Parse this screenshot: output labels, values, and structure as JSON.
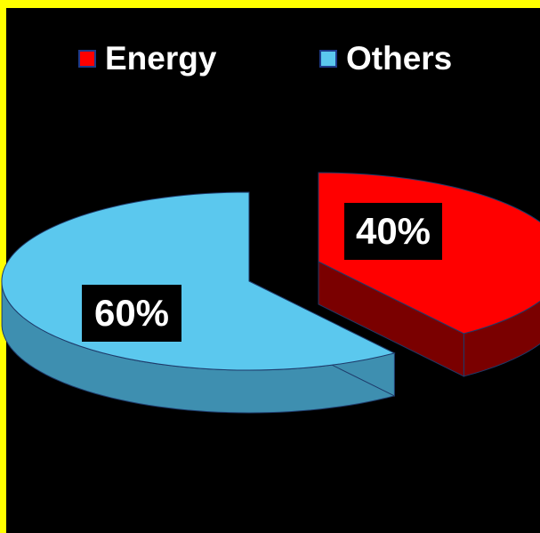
{
  "chart_data": {
    "type": "pie",
    "title": "",
    "categories": [
      "Energy",
      "Others"
    ],
    "values": [
      40,
      60
    ],
    "labels": [
      "40%",
      "60%"
    ],
    "colors": [
      "#FF0000",
      "#5BC8EE"
    ],
    "side_colors": [
      "#7A0000",
      "#3E8FB0"
    ],
    "legend_position": "top",
    "exploded": true,
    "three_d": true
  },
  "legend": {
    "items": [
      {
        "label": "Energy",
        "color": "#FF0000"
      },
      {
        "label": "Others",
        "color": "#5BC8EE"
      }
    ]
  },
  "theme": {
    "background": "#000000",
    "border_color": "#FFFF00",
    "text_color": "#FFFFFF"
  }
}
